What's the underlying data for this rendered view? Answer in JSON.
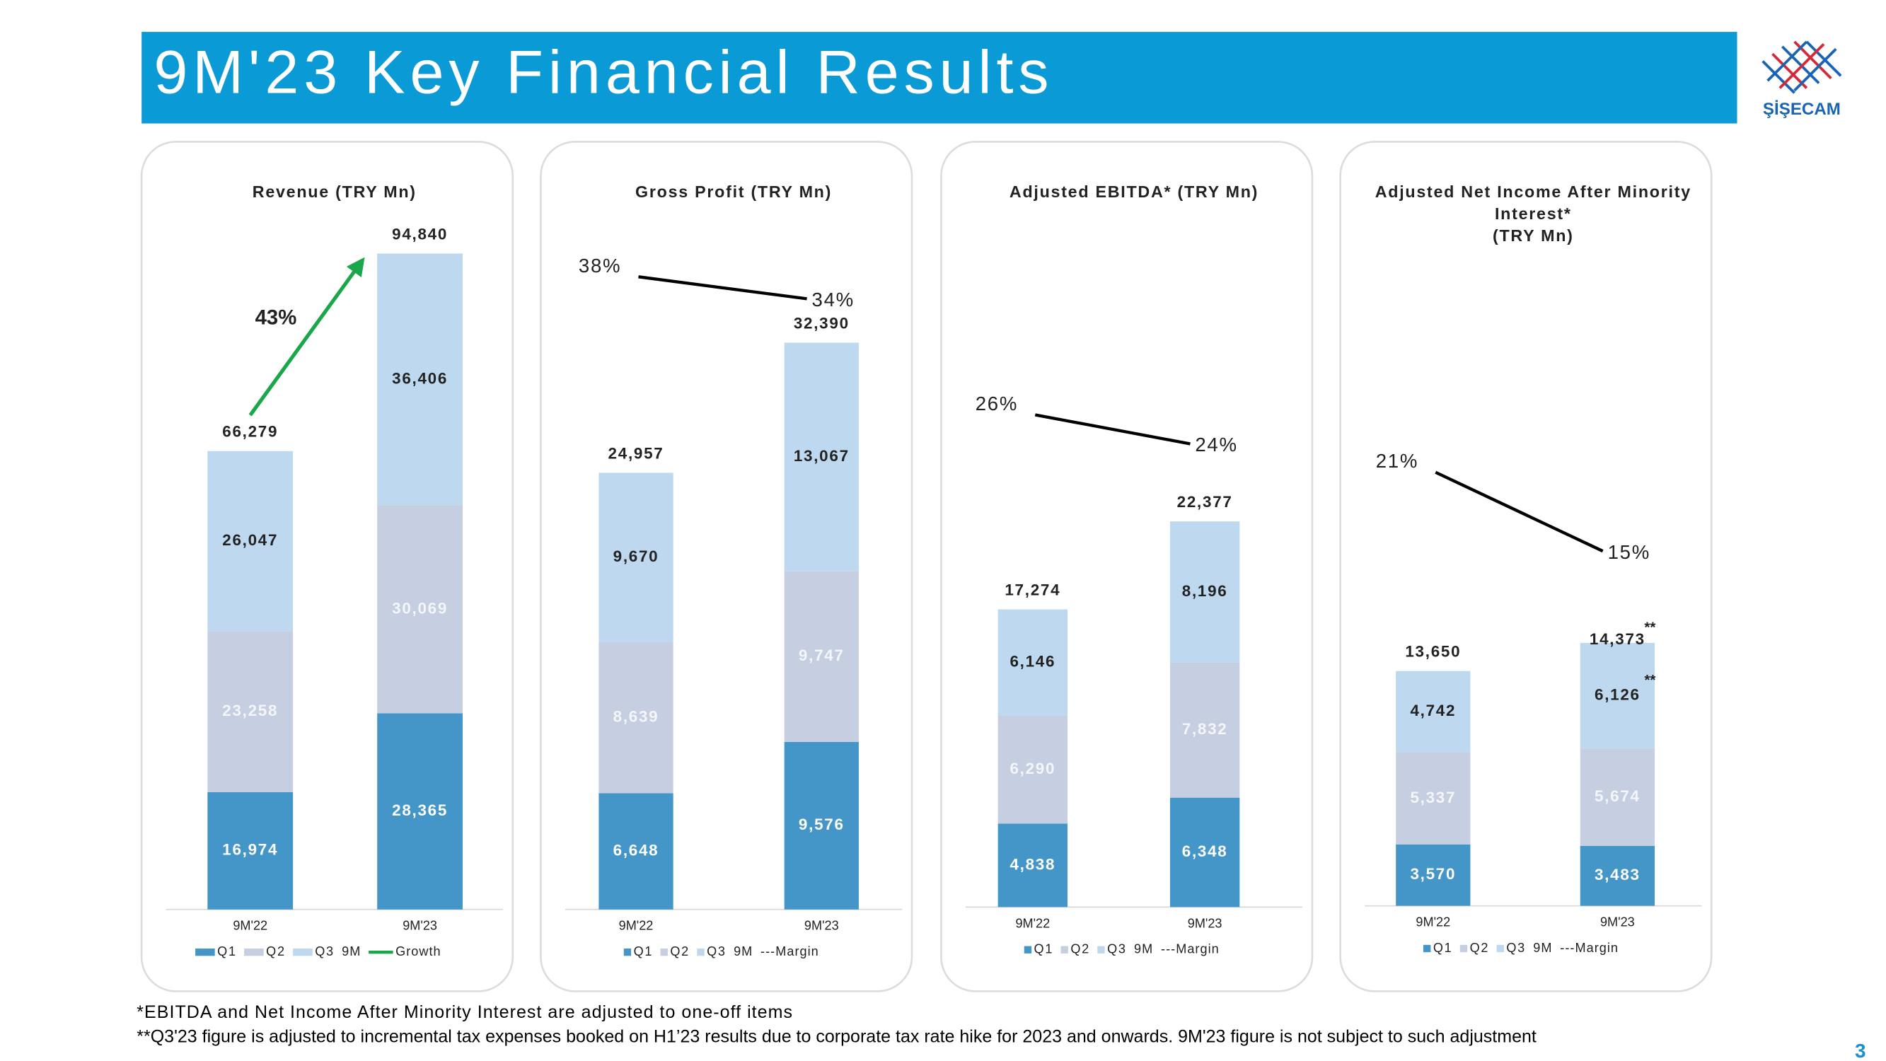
{
  "page": {
    "title": "9M'23 Key Financial Results",
    "logo": "ŞİŞECAM",
    "footnotes": [
      "*EBITDA and Net Income After Minority Interest are adjusted to one-off items",
      "**Q3'23 figure is adjusted to incremental tax expenses booked on H1’23 results due to corporate tax rate hike for 2023 and onwards. 9M'23 figure is not subject to such adjustment"
    ],
    "page_number": "3"
  },
  "chart_data": [
    {
      "type": "bar",
      "stacked": true,
      "title": [
        "Revenue (TRY Mn)"
      ],
      "categories": [
        "9M'22",
        "9M'23"
      ],
      "ylim": [
        0,
        105000
      ],
      "series": [
        {
          "name": "Q1",
          "color": "#4596c8",
          "label_color": "#ffffff",
          "values": [
            16974,
            28365
          ],
          "value_labels": [
            "16,974",
            "28,365"
          ]
        },
        {
          "name": "Q2",
          "color": "#c6cfe1",
          "label_color": "#f4f6fa",
          "values": [
            23258,
            30069
          ],
          "value_labels": [
            "23,258",
            "30,069"
          ]
        },
        {
          "name": "Q3",
          "color": "#bed8ef",
          "label_color": "#222222",
          "values": [
            26047,
            36406
          ],
          "value_labels": [
            "26,047",
            "36,406"
          ]
        }
      ],
      "total": {
        "values": [
          66279,
          94840
        ],
        "value_labels": [
          "66,279",
          "94,840"
        ]
      },
      "growth": {
        "value": 43,
        "value_label": "43%",
        "color": "#1aa64a"
      },
      "legend_extra": [
        "9M",
        "Growth"
      ]
    },
    {
      "type": "bar",
      "stacked": true,
      "title": [
        "Gross Profit  (TRY Mn)"
      ],
      "categories": [
        "9M'22",
        "9M'23"
      ],
      "ylim": [
        0,
        41500
      ],
      "y2lim": [
        -77,
        55
      ],
      "series": [
        {
          "name": "Q1",
          "color": "#4596c8",
          "label_color": "#ffffff",
          "values": [
            6648,
            9576
          ],
          "value_labels": [
            "6,648",
            "9,576"
          ]
        },
        {
          "name": "Q2",
          "color": "#c6cfe1",
          "label_color": "#f4f6fa",
          "values": [
            8639,
            9747
          ],
          "value_labels": [
            "8,639",
            "9,747"
          ]
        },
        {
          "name": "Q3",
          "color": "#bed8ef",
          "label_color": "#222222",
          "values": [
            9670,
            13067
          ],
          "value_labels": [
            "9,670",
            "13,067"
          ]
        }
      ],
      "total": {
        "values": [
          24957,
          32390
        ],
        "value_labels": [
          "24,957",
          "32,390"
        ]
      },
      "margin": {
        "values": [
          38,
          34
        ],
        "value_labels": [
          "38%",
          "34%"
        ],
        "color": "#000000",
        "axis": "y2"
      },
      "legend_extra": [
        "9M",
        "---Margin"
      ]
    },
    {
      "type": "bar",
      "stacked": true,
      "title": [
        "Adjusted EBITDA* (TRY Mn)"
      ],
      "categories": [
        "9M'22",
        "9M'23"
      ],
      "ylim": [
        0,
        42000
      ],
      "y2lim": [
        -8,
        42
      ],
      "series": [
        {
          "name": "Q1",
          "color": "#4596c8",
          "label_color": "#ffffff",
          "values": [
            4838,
            6348
          ],
          "value_labels": [
            "4,838",
            "6,348"
          ]
        },
        {
          "name": "Q2",
          "color": "#c6cfe1",
          "label_color": "#f4f6fa",
          "values": [
            6290,
            7832
          ],
          "value_labels": [
            "6,290",
            "7,832"
          ]
        },
        {
          "name": "Q3",
          "color": "#bed8ef",
          "label_color": "#222222",
          "values": [
            6146,
            8196
          ],
          "value_labels": [
            "6,146",
            "8,196"
          ]
        }
      ],
      "total": {
        "values": [
          17274,
          22377
        ],
        "value_labels": [
          "17,274",
          "22,377"
        ]
      },
      "margin": {
        "values": [
          26,
          24
        ],
        "value_labels": [
          "26%",
          "24%"
        ],
        "color": "#000000",
        "axis": "y2"
      },
      "legend_extra": [
        "9M",
        "---Margin"
      ]
    },
    {
      "type": "bar",
      "stacked": true,
      "title": [
        "Adjusted Net Income After Minority",
        "Interest*",
        "(TRY Mn)"
      ],
      "categories": [
        "9M'22",
        "9M'23"
      ],
      "ylim": [
        0,
        42000
      ],
      "y2lim": [
        -12,
        43
      ],
      "series": [
        {
          "name": "Q1",
          "color": "#4596c8",
          "label_color": "#ffffff",
          "values": [
            3570,
            3483
          ],
          "value_labels": [
            "3,570",
            "3,483"
          ]
        },
        {
          "name": "Q2",
          "color": "#c6cfe1",
          "label_color": "#f4f6fa",
          "values": [
            5337,
            5674
          ],
          "value_labels": [
            "5,337",
            "5,674"
          ]
        },
        {
          "name": "Q3",
          "color": "#bed8ef",
          "label_color": "#222222",
          "values": [
            4742,
            6126
          ],
          "value_labels": [
            "4,742",
            "6,126"
          ]
        }
      ],
      "total": {
        "values": [
          13650,
          14373
        ],
        "value_labels": [
          "13,650",
          "14,373"
        ]
      },
      "footnote_marks": {
        "total": [
          null,
          "**"
        ],
        "Q3": [
          null,
          "**"
        ]
      },
      "margin": {
        "values": [
          21,
          15
        ],
        "value_labels": [
          "21%",
          "15%"
        ],
        "color": "#000000",
        "axis": "y2"
      },
      "legend_extra": [
        "9M",
        "---Margin"
      ]
    }
  ]
}
